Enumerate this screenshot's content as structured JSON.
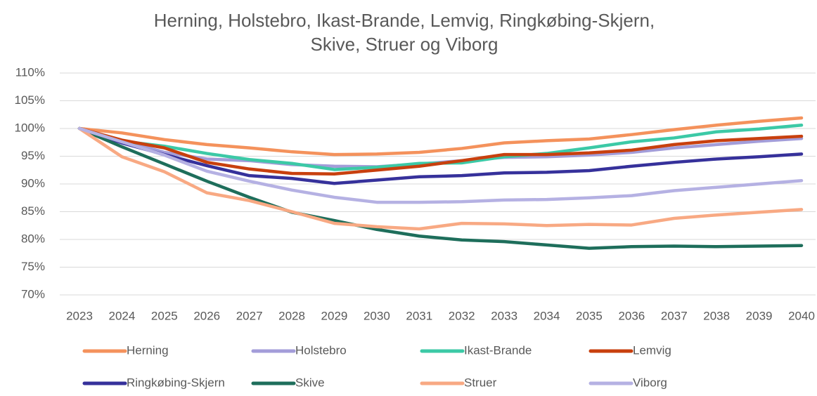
{
  "chart_data": {
    "type": "line",
    "title": [
      "Herning, Holstebro, Ikast-Brande, Lemvig, Ringkøbing-Skjern,",
      "Skive, Struer og Viborg"
    ],
    "categories": [
      "2023",
      "2024",
      "2025",
      "2026",
      "2027",
      "2028",
      "2029",
      "2030",
      "2031",
      "2032",
      "2033",
      "2034",
      "2035",
      "2036",
      "2037",
      "2038",
      "2039",
      "2040"
    ],
    "ylim": [
      70,
      110
    ],
    "yticks": [
      {
        "value": 70,
        "label": "70%"
      },
      {
        "value": 75,
        "label": "75%"
      },
      {
        "value": 80,
        "label": "80%"
      },
      {
        "value": 85,
        "label": "85%"
      },
      {
        "value": 90,
        "label": "90%"
      },
      {
        "value": 95,
        "label": "95%"
      },
      {
        "value": 100,
        "label": "100%"
      },
      {
        "value": 105,
        "label": "105%"
      },
      {
        "value": 110,
        "label": "110%"
      }
    ],
    "grid": true,
    "legend": "bottom",
    "series": [
      {
        "name": "Herning",
        "color": "#F4925C",
        "values": [
          100,
          99.2,
          98,
          97.1,
          96.5,
          95.8,
          95.3,
          95.4,
          95.7,
          96.4,
          97.4,
          97.8,
          98.1,
          98.9,
          99.8,
          100.6,
          101.3,
          101.9
        ]
      },
      {
        "name": "Holstebro",
        "color": "#A39DD9",
        "values": [
          100,
          97.8,
          95.7,
          94.5,
          94.2,
          93.5,
          93.2,
          93.1,
          93.6,
          94.2,
          94.8,
          94.9,
          95.2,
          95.7,
          96.5,
          97.1,
          97.7,
          98.2
        ]
      },
      {
        "name": "Ikast-Brande",
        "color": "#3CC9A6",
        "values": [
          100,
          97.7,
          96.8,
          95.5,
          94.4,
          93.7,
          92.6,
          93,
          93.7,
          93.8,
          94.9,
          95.5,
          96.5,
          97.6,
          98.3,
          99.4,
          99.9,
          100.6
        ]
      },
      {
        "name": "Lemvig",
        "color": "#C8400E",
        "values": [
          100,
          97.9,
          96.5,
          93.9,
          92.7,
          91.9,
          91.8,
          92.5,
          93.2,
          94.2,
          95.3,
          95.3,
          95.6,
          96.1,
          97.1,
          97.8,
          98.2,
          98.6
        ]
      },
      {
        "name": "Ringkøbing-Skjern",
        "color": "#36319B",
        "values": [
          100,
          97.4,
          95.3,
          93.3,
          91.5,
          91,
          90.1,
          90.7,
          91.3,
          91.5,
          92,
          92.1,
          92.4,
          93.2,
          93.9,
          94.5,
          94.9,
          95.4
        ]
      },
      {
        "name": "Skive",
        "color": "#1E6E5B",
        "values": [
          100,
          96.7,
          93.6,
          90.5,
          87.6,
          84.9,
          83.4,
          81.8,
          80.6,
          79.9,
          79.6,
          79,
          78.4,
          78.7,
          78.8,
          78.7,
          78.8,
          78.9
        ]
      },
      {
        "name": "Struer",
        "color": "#F8A983",
        "values": [
          100,
          94.9,
          92.2,
          88.4,
          87,
          85,
          82.9,
          82.3,
          81.9,
          82.9,
          82.8,
          82.5,
          82.7,
          82.6,
          83.8,
          84.4,
          84.9,
          85.4
        ]
      },
      {
        "name": "Viborg",
        "color": "#B5B1E3",
        "values": [
          100,
          97.6,
          95.2,
          92.3,
          90.5,
          88.9,
          87.6,
          86.7,
          86.7,
          86.8,
          87.1,
          87.2,
          87.5,
          87.9,
          88.8,
          89.4,
          90,
          90.6
        ]
      }
    ]
  }
}
